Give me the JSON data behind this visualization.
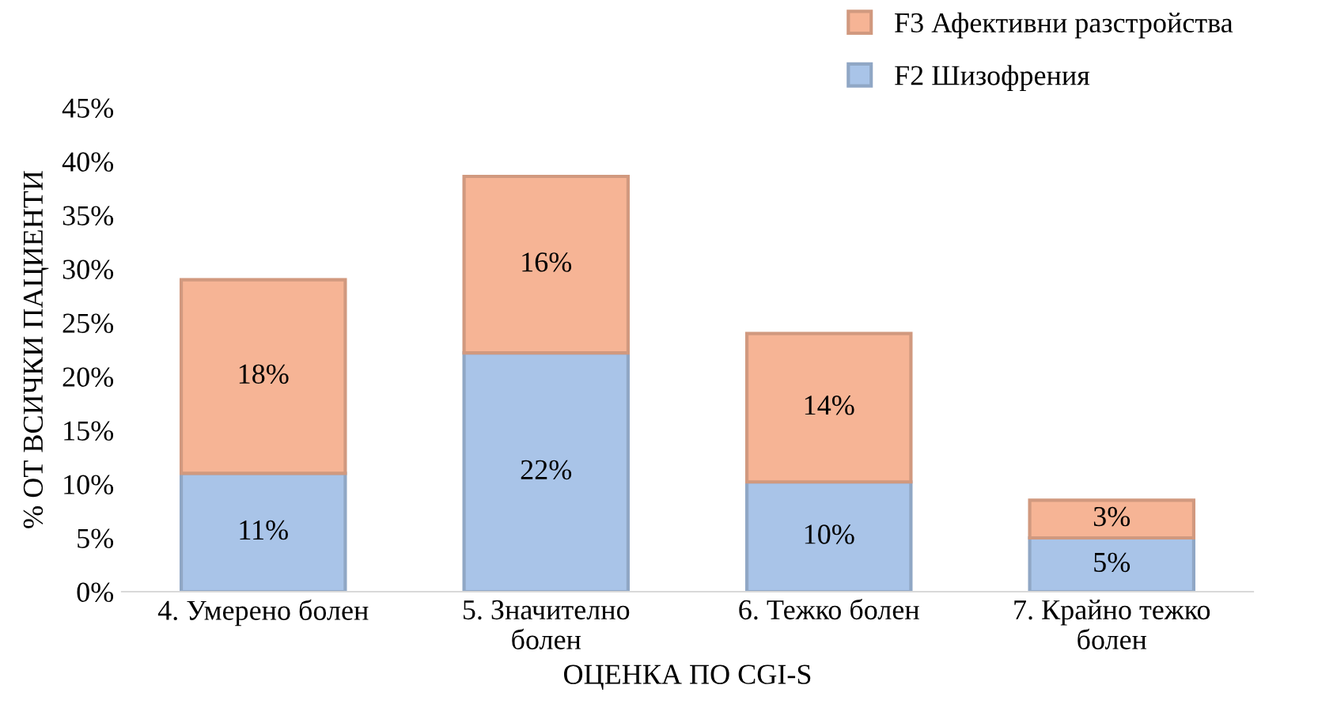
{
  "chart_data": {
    "type": "bar",
    "stacked": true,
    "xlabel": "ОЦЕНКА ПО CGI-S",
    "ylabel": "% ОТ ВСИЧКИ ПАЦИЕНТИ",
    "categories": [
      "4. Умерено болен",
      "5. Значително\nболен",
      "6. Тежко болен",
      "7. Крайно тежко\nболен"
    ],
    "series": [
      {
        "name": "F2 Шизофрения",
        "color": "#a9c4e8",
        "values": [
          11,
          22.2,
          10.2,
          5
        ],
        "value_labels": [
          "11%",
          "22%",
          "10%",
          "5%"
        ]
      },
      {
        "name": "F3 Афективни разстройства",
        "color": "#f6b495",
        "values": [
          18,
          16.4,
          13.8,
          3.5
        ],
        "value_labels": [
          "18%",
          "16%",
          "14%",
          "3%"
        ]
      }
    ],
    "ylim": [
      0,
      45
    ],
    "yticks": [
      {
        "value": 0,
        "label": "0%"
      },
      {
        "value": 5,
        "label": "5%"
      },
      {
        "value": 10,
        "label": "10%"
      },
      {
        "value": 15,
        "label": "15%"
      },
      {
        "value": 20,
        "label": "20%"
      },
      {
        "value": 25,
        "label": "25%"
      },
      {
        "value": 30,
        "label": "30%"
      },
      {
        "value": 35,
        "label": "35%"
      },
      {
        "value": 40,
        "label": "40%"
      },
      {
        "value": 45,
        "label": "45%"
      }
    ],
    "grid": false,
    "legend": "top right"
  }
}
